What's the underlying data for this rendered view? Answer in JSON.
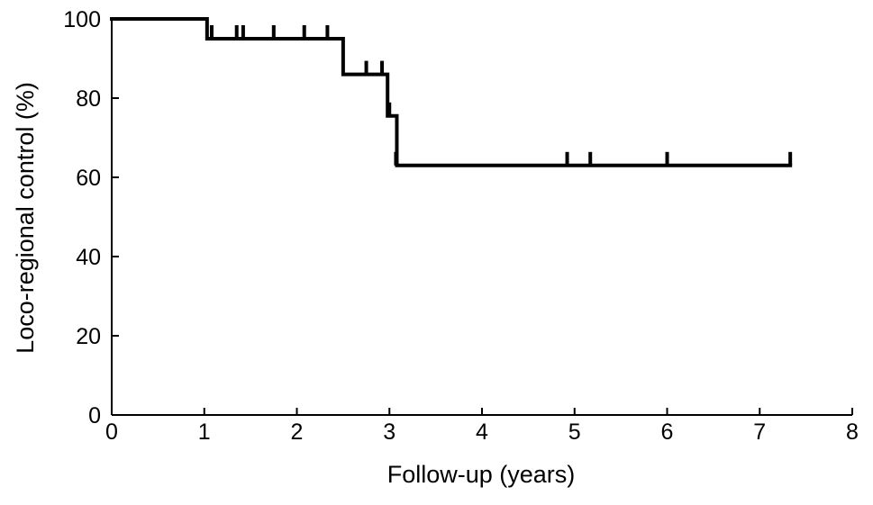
{
  "chart_data": {
    "type": "line",
    "subtype": "kaplan-meier-step",
    "xlabel": "Follow-up (years)",
    "ylabel": "Loco-regional control (%)",
    "xlim": [
      0,
      8
    ],
    "ylim": [
      0,
      100
    ],
    "xticks": [
      0,
      1,
      2,
      3,
      4,
      5,
      6,
      7,
      8
    ],
    "yticks": [
      0,
      20,
      40,
      60,
      80,
      100
    ],
    "xtick_labels": [
      "0",
      "1",
      "2",
      "3",
      "4",
      "5",
      "6",
      "7",
      "8"
    ],
    "ytick_labels": [
      "0",
      "20",
      "40",
      "60",
      "80",
      "100"
    ],
    "grid": false,
    "series": [
      {
        "color": "#000000",
        "step_points": [
          {
            "x": 0,
            "y": 100
          },
          {
            "x": 1.03,
            "y": 95
          },
          {
            "x": 2.5,
            "y": 86
          },
          {
            "x": 2.98,
            "y": 75.5
          },
          {
            "x": 3.08,
            "y": 63
          },
          {
            "x": 7.33,
            "y": 63
          }
        ],
        "censored": [
          {
            "x": 1.08,
            "y": 95
          },
          {
            "x": 1.35,
            "y": 95
          },
          {
            "x": 1.42,
            "y": 95
          },
          {
            "x": 1.75,
            "y": 95
          },
          {
            "x": 2.08,
            "y": 95
          },
          {
            "x": 2.33,
            "y": 95
          },
          {
            "x": 2.75,
            "y": 86
          },
          {
            "x": 2.92,
            "y": 86
          },
          {
            "x": 3.0,
            "y": 75.5
          },
          {
            "x": 3.07,
            "y": 63
          },
          {
            "x": 4.92,
            "y": 63
          },
          {
            "x": 5.17,
            "y": 63
          },
          {
            "x": 6.0,
            "y": 63
          },
          {
            "x": 7.33,
            "y": 63
          }
        ]
      }
    ]
  }
}
